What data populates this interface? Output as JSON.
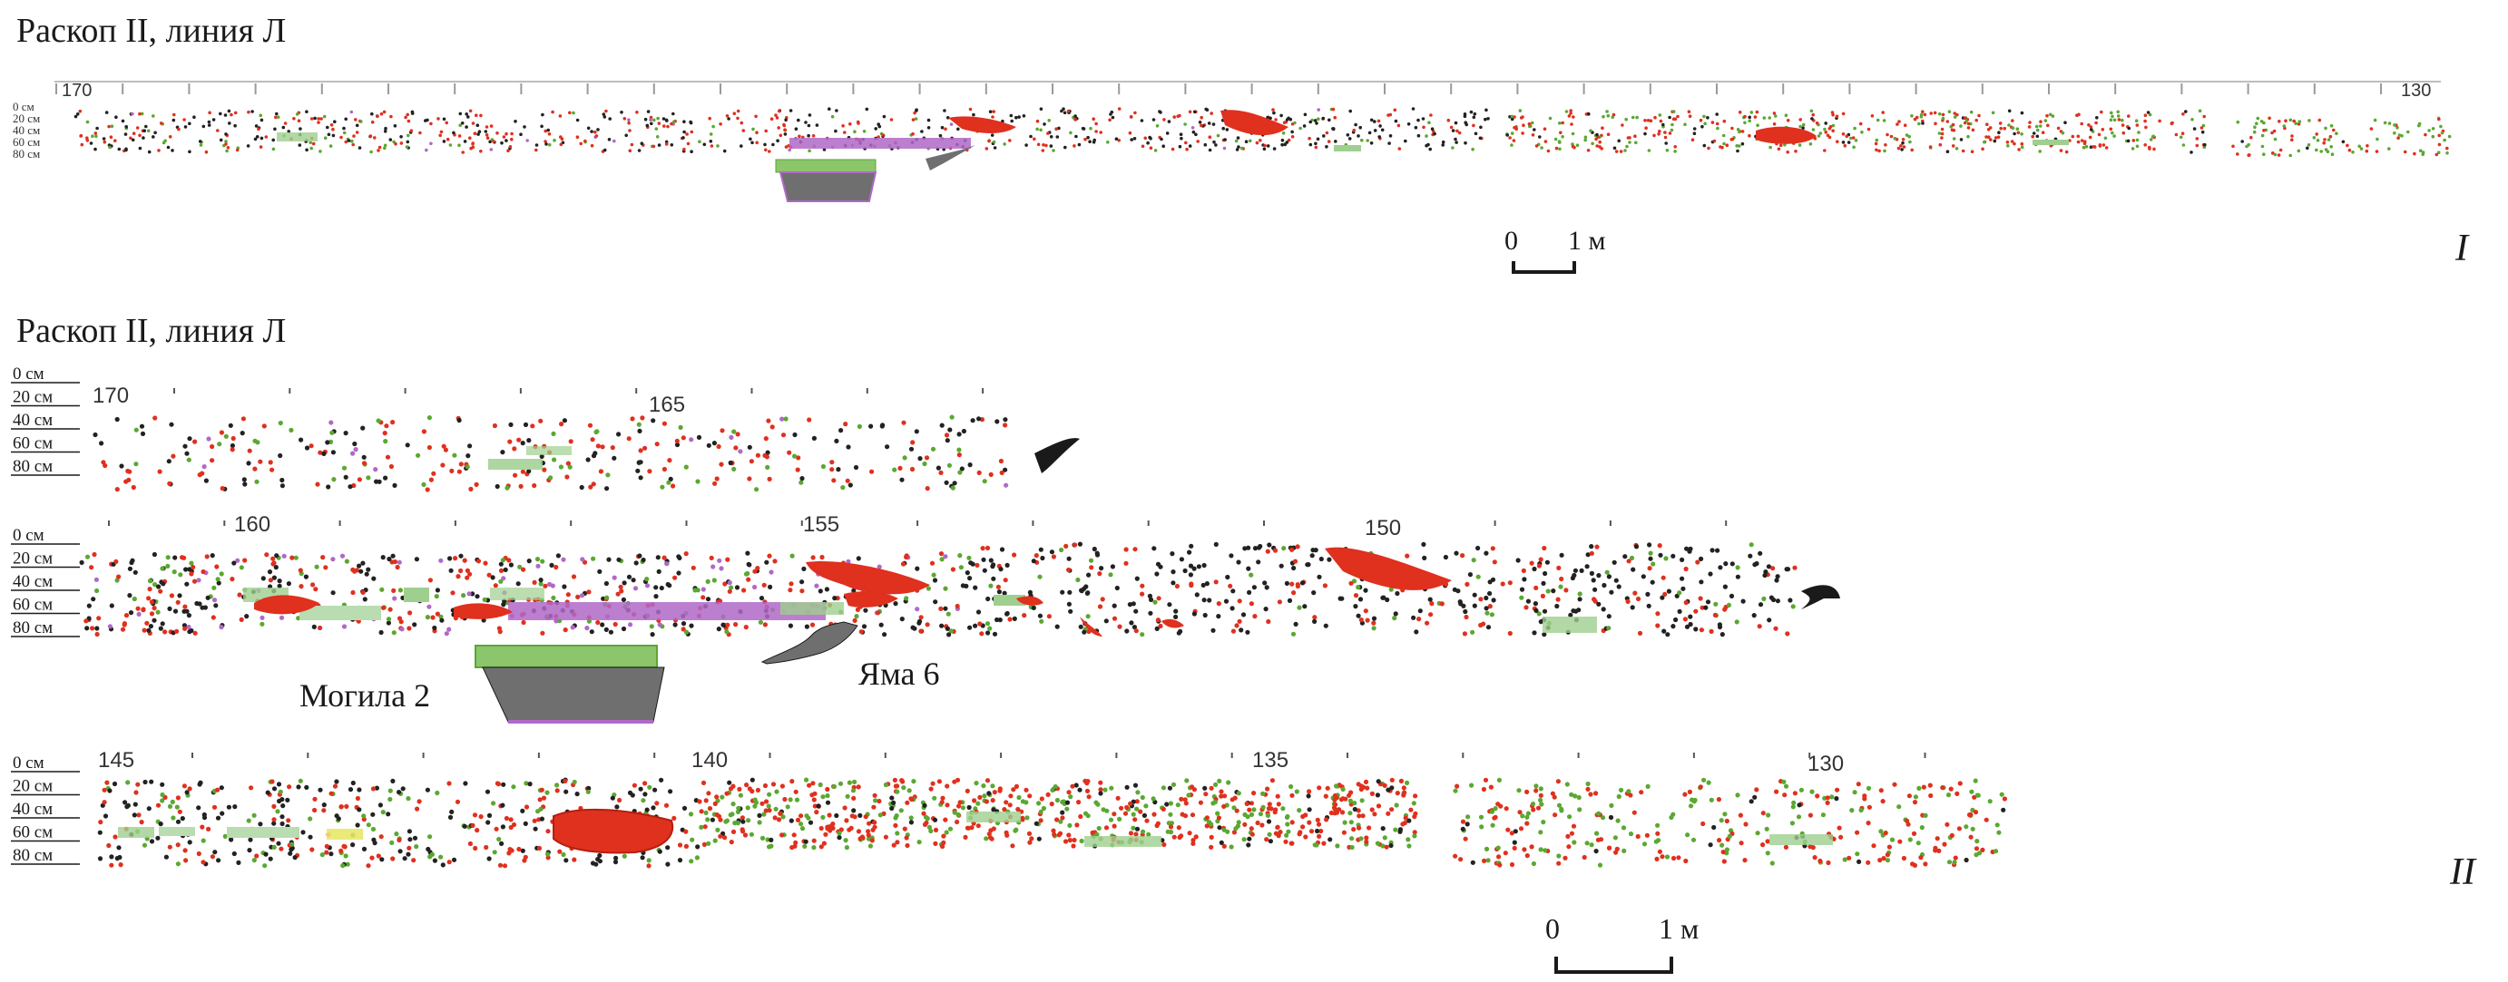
{
  "figure_top": {
    "title": "Раскоп II, линия Л",
    "plate_label": "I",
    "ruler": {
      "start": "170",
      "end": "130"
    },
    "depth_labels": [
      "0 см",
      "20 см",
      "40 см",
      "60 см",
      "80 см"
    ],
    "scale_bar": {
      "zero": "0",
      "end": "1 м"
    }
  },
  "figure_bottom": {
    "title": "Раскоп II, линия Л",
    "plate_label": "II",
    "depth_labels": [
      "0 см",
      "20 см",
      "40 см",
      "60 см",
      "80 см"
    ],
    "strips": [
      {
        "ticks": [
          "170",
          "165"
        ]
      },
      {
        "ticks": [
          "160",
          "155",
          "150"
        ]
      },
      {
        "ticks": [
          "145",
          "140",
          "135",
          "130"
        ]
      }
    ],
    "annotations": {
      "grave": "Могила 2",
      "pit": "Яма 6"
    },
    "scale_bar": {
      "zero": "0",
      "end": "1 м"
    }
  },
  "legend_colors": {
    "black_finds": "#222222",
    "red_finds": "#e0301e",
    "green_finds": "#5aa832",
    "purple_finds": "#b069c8",
    "light_green_blocks": "#9fcf8f",
    "grey_shapes": "#6f6f6f"
  }
}
